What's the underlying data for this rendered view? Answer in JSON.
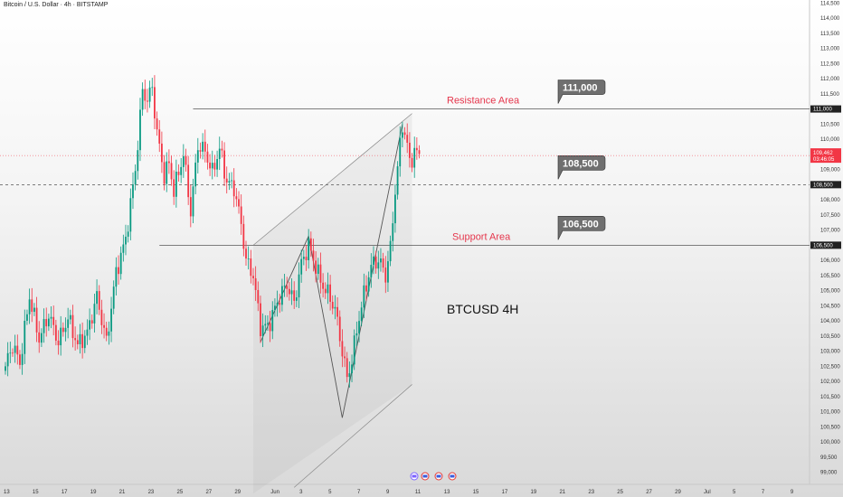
{
  "header": {
    "title": "Bitcoin / U.S. Dollar · 4h · BITSTAMP"
  },
  "symbol_label": "BTCUSD 4H",
  "current_price": {
    "price": "109,462",
    "countdown": "03:46:05"
  },
  "colors": {
    "up": "#089981",
    "down": "#f23645",
    "level_box": "#6f6f6f",
    "zone_text": "#e5364c"
  },
  "events": [
    "calendar-icon",
    "us-flag-icon",
    "us-flag-icon",
    "us-flag-icon"
  ],
  "chart_data": {
    "type": "candlestick",
    "title": "Bitcoin / U.S. Dollar · 4h · BITSTAMP",
    "ylim": [
      98600,
      114600
    ],
    "price_ticks": [
      99000,
      99500,
      100000,
      100500,
      101000,
      101500,
      102000,
      102500,
      103000,
      103500,
      104000,
      104500,
      105000,
      105500,
      106000,
      106500,
      107000,
      107500,
      108000,
      108500,
      109000,
      109500,
      110000,
      110500,
      111000,
      111500,
      112000,
      112500,
      113000,
      113500,
      114000,
      114500
    ],
    "price_tick_labels": [
      "99,000",
      "99,500",
      "100,000",
      "100,500",
      "101,000",
      "101,500",
      "102,000",
      "102,500",
      "103,000",
      "103,500",
      "104,000",
      "104,500",
      "105,000",
      "105,500",
      "106,000",
      "106,500",
      "107,000",
      "107,500",
      "108,000",
      "108,500",
      "109,000",
      "109,500",
      "110,000",
      "110,500",
      "111,000",
      "111,500",
      "112,000",
      "112,500",
      "113,000",
      "113,500",
      "114,000",
      "114,500"
    ],
    "x_ticks": [
      {
        "i": 0,
        "label": "13"
      },
      {
        "i": 12,
        "label": "15"
      },
      {
        "i": 24,
        "label": "17"
      },
      {
        "i": 36,
        "label": "19"
      },
      {
        "i": 48,
        "label": "21"
      },
      {
        "i": 60,
        "label": "23"
      },
      {
        "i": 72,
        "label": "25"
      },
      {
        "i": 84,
        "label": "27"
      },
      {
        "i": 96,
        "label": "29"
      },
      {
        "i": 111,
        "label": "Jun"
      },
      {
        "i": 123,
        "label": "3"
      },
      {
        "i": 135,
        "label": "5"
      },
      {
        "i": 147,
        "label": "7"
      },
      {
        "i": 159,
        "label": "9"
      },
      {
        "i": 171,
        "label": "11"
      },
      {
        "i": 183,
        "label": "13"
      },
      {
        "i": 195,
        "label": "15"
      },
      {
        "i": 207,
        "label": "17"
      },
      {
        "i": 219,
        "label": "19"
      },
      {
        "i": 231,
        "label": "21"
      },
      {
        "i": 243,
        "label": "23"
      },
      {
        "i": 255,
        "label": "25"
      },
      {
        "i": 267,
        "label": "27"
      },
      {
        "i": 279,
        "label": "29"
      },
      {
        "i": 291,
        "label": "Jul"
      },
      {
        "i": 303,
        "label": "5"
      },
      {
        "i": 315,
        "label": "7"
      },
      {
        "i": 327,
        "label": "9"
      }
    ],
    "anchors": [
      [
        0,
        102500
      ],
      [
        3,
        103200
      ],
      [
        6,
        102600
      ],
      [
        10,
        104800
      ],
      [
        14,
        103400
      ],
      [
        18,
        104200
      ],
      [
        22,
        103300
      ],
      [
        26,
        104100
      ],
      [
        30,
        103200
      ],
      [
        34,
        103600
      ],
      [
        38,
        104800
      ],
      [
        42,
        103300
      ],
      [
        46,
        105600
      ],
      [
        50,
        106700
      ],
      [
        54,
        109000
      ],
      [
        57,
        111600
      ],
      [
        59,
        111300
      ],
      [
        61,
        111700
      ],
      [
        63,
        110200
      ],
      [
        66,
        108800
      ],
      [
        68,
        109200
      ],
      [
        70,
        108300
      ],
      [
        74,
        109500
      ],
      [
        77,
        107600
      ],
      [
        80,
        109800
      ],
      [
        83,
        109600
      ],
      [
        86,
        108900
      ],
      [
        89,
        109700
      ],
      [
        92,
        108600
      ],
      [
        95,
        108400
      ],
      [
        98,
        107200
      ],
      [
        100,
        106000
      ],
      [
        103,
        105500
      ],
      [
        106,
        103800
      ],
      [
        109,
        103800
      ],
      [
        111,
        104200
      ],
      [
        114,
        104800
      ],
      [
        117,
        105200
      ],
      [
        120,
        104600
      ],
      [
        123,
        105900
      ],
      [
        126,
        106500
      ],
      [
        129,
        105800
      ],
      [
        131,
        105300
      ],
      [
        134,
        104900
      ],
      [
        137,
        104400
      ],
      [
        140,
        103000
      ],
      [
        142,
        102100
      ],
      [
        144,
        102700
      ],
      [
        146,
        103700
      ],
      [
        148,
        104500
      ],
      [
        150,
        105200
      ],
      [
        152,
        105800
      ],
      [
        154,
        106000
      ],
      [
        156,
        105900
      ],
      [
        158,
        105500
      ],
      [
        160,
        106400
      ],
      [
        162,
        108300
      ],
      [
        164,
        109800
      ],
      [
        165,
        110500
      ],
      [
        167,
        109800
      ],
      [
        168,
        109200
      ],
      [
        170,
        109600
      ],
      [
        172,
        109462
      ]
    ],
    "levels": [
      {
        "name": "Resistance Area",
        "price": 111000,
        "label": "111,000",
        "style": "solid"
      },
      {
        "name": "",
        "price": 108500,
        "label": "108,500",
        "style": "dashed"
      },
      {
        "name": "Support Area",
        "price": 106500,
        "label": "106,500",
        "style": "solid"
      }
    ],
    "current_price": 109462
  }
}
